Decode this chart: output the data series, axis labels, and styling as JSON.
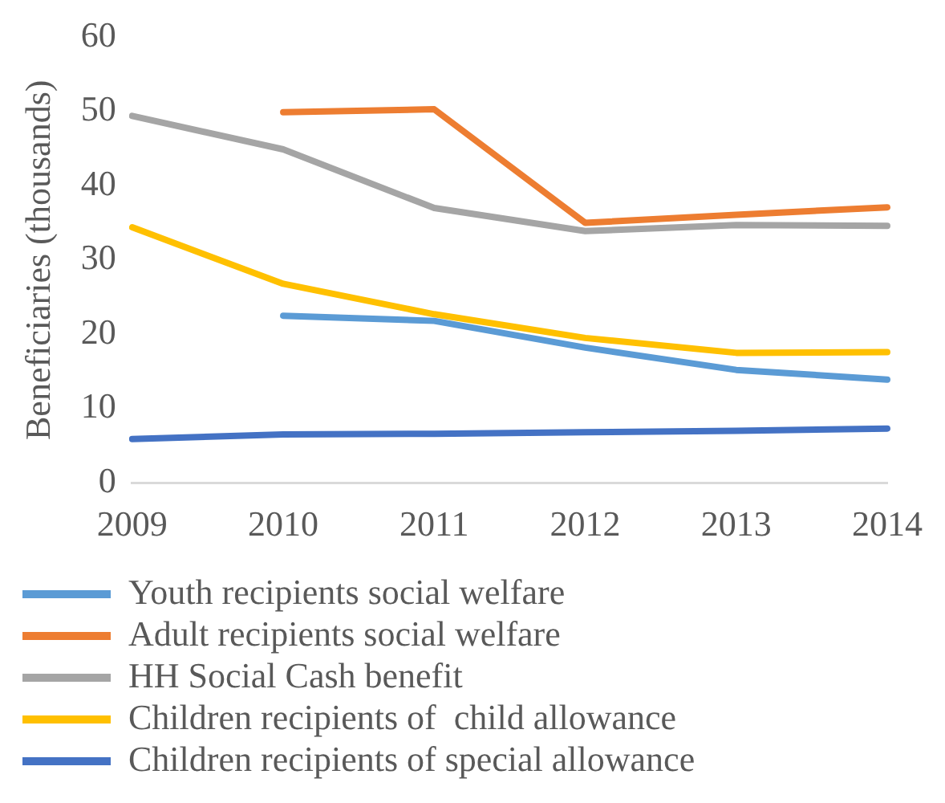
{
  "chart_data": {
    "type": "line",
    "ylabel": "Beneficiaries (thousands)",
    "categories": [
      "2009",
      "2010",
      "2011",
      "2012",
      "2013",
      "2014"
    ],
    "series": [
      {
        "name": "Youth recipients social welfare",
        "color": "#5b9bd5",
        "values": [
          null,
          22.5,
          21.8,
          18.2,
          15.2,
          13.9
        ]
      },
      {
        "name": "Adult recipients social welfare",
        "color": "#ed7d31",
        "values": [
          null,
          49.9,
          50.3,
          35.0,
          36.1,
          37.1
        ]
      },
      {
        "name": "HH Social Cash benefit",
        "color": "#a5a5a5",
        "values": [
          49.4,
          44.9,
          37.0,
          33.9,
          34.7,
          34.6
        ]
      },
      {
        "name": "Children recipients of  child allowance",
        "color": "#ffc000",
        "values": [
          34.4,
          26.8,
          22.7,
          19.5,
          17.5,
          17.6
        ]
      },
      {
        "name": "Children recipients of special allowance",
        "color": "#4472c4",
        "values": [
          5.9,
          6.5,
          6.6,
          6.8,
          7.0,
          7.3
        ]
      }
    ],
    "ylim": [
      0,
      60
    ],
    "yticks": [
      0,
      10,
      20,
      30,
      40,
      50,
      60
    ],
    "grid": false,
    "legend": "bottom",
    "marker": "none",
    "line_style": "solid"
  }
}
